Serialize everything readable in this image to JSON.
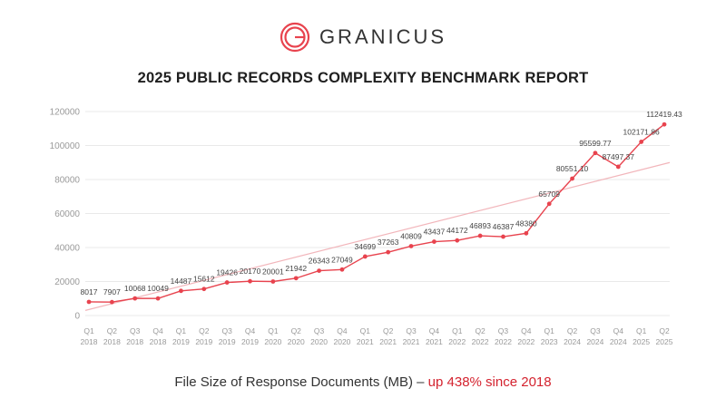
{
  "brand": {
    "name": "GRANICUS",
    "logo_icon": "granicus-logo-icon",
    "color": "#e8434e"
  },
  "caption": {
    "prefix": "File Size of Response Documents (MB) – ",
    "highlight": "up 438% since 2018",
    "highlight_color": "#d4232f"
  },
  "chart_data": {
    "type": "line",
    "title": "2025 PUBLIC RECORDS COMPLEXITY BENCHMARK REPORT",
    "xlabel": "",
    "ylabel": "",
    "ylim": [
      0,
      120000
    ],
    "yticks": [
      0,
      20000,
      40000,
      60000,
      80000,
      100000,
      120000
    ],
    "grid": true,
    "categories": [
      [
        "Q1",
        "2018"
      ],
      [
        "Q2",
        "2018"
      ],
      [
        "Q3",
        "2018"
      ],
      [
        "Q4",
        "2018"
      ],
      [
        "Q1",
        "2019"
      ],
      [
        "Q2",
        "2019"
      ],
      [
        "Q3",
        "2019"
      ],
      [
        "Q4",
        "2019"
      ],
      [
        "Q1",
        "2020"
      ],
      [
        "Q2",
        "2020"
      ],
      [
        "Q3",
        "2020"
      ],
      [
        "Q4",
        "2020"
      ],
      [
        "Q1",
        "2021"
      ],
      [
        "Q2",
        "2021"
      ],
      [
        "Q3",
        "2021"
      ],
      [
        "Q4",
        "2021"
      ],
      [
        "Q1",
        "2022"
      ],
      [
        "Q2",
        "2022"
      ],
      [
        "Q3",
        "2022"
      ],
      [
        "Q4",
        "2022"
      ],
      [
        "Q1",
        "2023"
      ],
      [
        "Q2",
        "2024"
      ],
      [
        "Q3",
        "2024"
      ],
      [
        "Q4",
        "2024"
      ],
      [
        "Q1",
        "2025"
      ],
      [
        "Q2",
        "2025"
      ]
    ],
    "series": [
      {
        "color": "#e8434e",
        "values": [
          8017,
          7907,
          10068,
          10049,
          14487,
          15612,
          19426,
          20170,
          20001,
          21942,
          26343,
          27049,
          34699,
          37263,
          40809,
          43437,
          44172,
          46893,
          46387,
          48380,
          65709,
          80551.1,
          95599.77,
          87497.37,
          102171.86,
          112419.43
        ],
        "labels": [
          "8017",
          "7907",
          "10068",
          "10049",
          "14487",
          "15612",
          "19426",
          "20170",
          "20001",
          "21942",
          "26343",
          "27049",
          "34699",
          "37263",
          "40809",
          "43437",
          "44172",
          "46893",
          "46387",
          "48380",
          "65709",
          "80551.10",
          "95599.77",
          "87497.37",
          "102171.86",
          "112419.43"
        ]
      }
    ],
    "trendline": {
      "color": "#f2b6bb",
      "start": 3000,
      "end": 90000
    }
  }
}
